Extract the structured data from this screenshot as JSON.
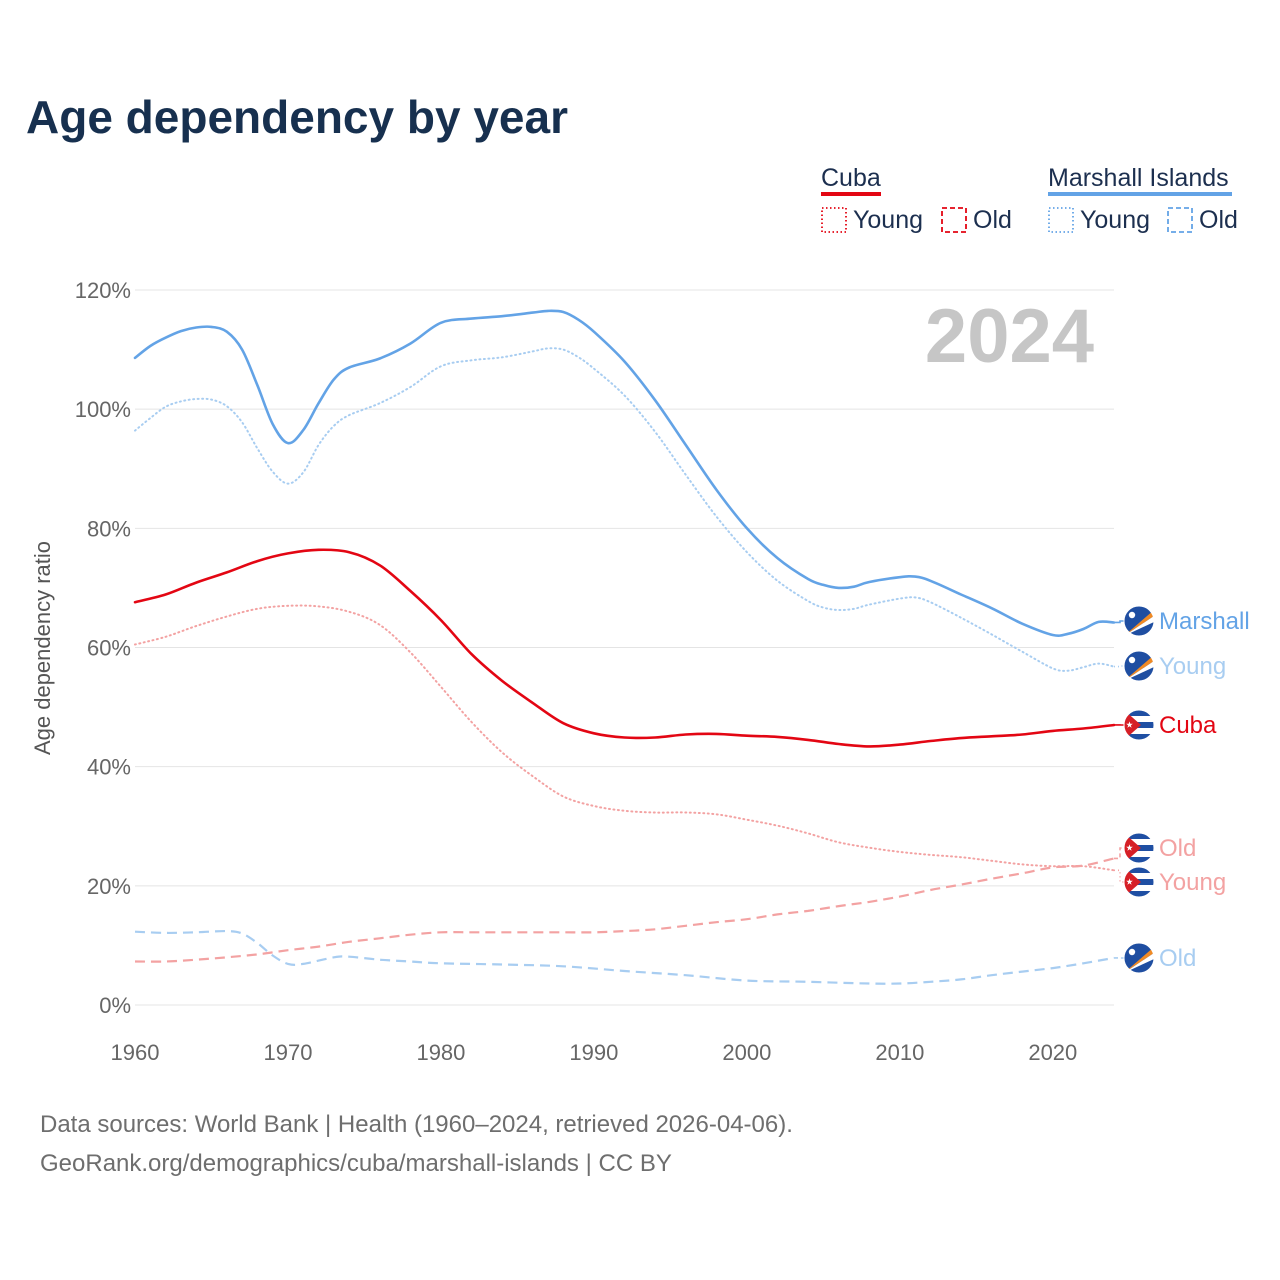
{
  "title": "Age dependency by year",
  "year_stamp": "2024",
  "legend": {
    "groups": [
      {
        "name": "Cuba",
        "color": "#e30613",
        "items": [
          "Young",
          "Old"
        ]
      },
      {
        "name": "Marshall Islands",
        "color": "#63a3e6",
        "items": [
          "Young",
          "Old"
        ]
      }
    ]
  },
  "chart_data": {
    "type": "line",
    "title": "Age dependency by year",
    "xlabel": "",
    "ylabel": "Age dependency ratio",
    "xlim": [
      1960,
      2024
    ],
    "ylim": [
      0,
      120
    ],
    "x_ticks": [
      1960,
      1970,
      1980,
      1990,
      2000,
      2010,
      2020
    ],
    "y_ticks": [
      0,
      20,
      40,
      60,
      80,
      100,
      120
    ],
    "y_tick_labels": [
      "0%",
      "20%",
      "40%",
      "60%",
      "80%",
      "100%",
      "120%"
    ],
    "grid": true,
    "series": [
      {
        "id": "cuba-total",
        "name": "Cuba",
        "country": "Cuba",
        "kind": "Total",
        "color": "#e30613",
        "dash": "solid",
        "label": "Cuba",
        "points": [
          [
            1960,
            67.6
          ],
          [
            1962,
            68.9
          ],
          [
            1964,
            70.9
          ],
          [
            1966,
            72.6
          ],
          [
            1968,
            74.5
          ],
          [
            1970,
            75.8
          ],
          [
            1972,
            76.4
          ],
          [
            1974,
            76.0
          ],
          [
            1976,
            73.8
          ],
          [
            1978,
            69.5
          ],
          [
            1980,
            64.6
          ],
          [
            1982,
            58.9
          ],
          [
            1984,
            54.4
          ],
          [
            1986,
            50.7
          ],
          [
            1988,
            47.3
          ],
          [
            1990,
            45.6
          ],
          [
            1992,
            44.9
          ],
          [
            1994,
            44.9
          ],
          [
            1996,
            45.4
          ],
          [
            1998,
            45.5
          ],
          [
            2000,
            45.2
          ],
          [
            2002,
            45.0
          ],
          [
            2004,
            44.5
          ],
          [
            2006,
            43.8
          ],
          [
            2008,
            43.4
          ],
          [
            2010,
            43.7
          ],
          [
            2012,
            44.3
          ],
          [
            2014,
            44.8
          ],
          [
            2016,
            45.1
          ],
          [
            2018,
            45.4
          ],
          [
            2020,
            46.0
          ],
          [
            2022,
            46.4
          ],
          [
            2024,
            47.0
          ]
        ]
      },
      {
        "id": "cuba-young",
        "name": "Cuba Young",
        "country": "Cuba",
        "kind": "Young",
        "color": "#f3a2a2",
        "dash": "dotted",
        "label": "Young",
        "points": [
          [
            1960,
            60.5
          ],
          [
            1962,
            61.8
          ],
          [
            1964,
            63.6
          ],
          [
            1966,
            65.2
          ],
          [
            1968,
            66.5
          ],
          [
            1970,
            67.0
          ],
          [
            1972,
            66.9
          ],
          [
            1974,
            66.0
          ],
          [
            1976,
            63.8
          ],
          [
            1978,
            59.2
          ],
          [
            1980,
            53.4
          ],
          [
            1982,
            47.5
          ],
          [
            1984,
            42.4
          ],
          [
            1986,
            38.4
          ],
          [
            1988,
            35.0
          ],
          [
            1990,
            33.4
          ],
          [
            1992,
            32.6
          ],
          [
            1994,
            32.3
          ],
          [
            1996,
            32.3
          ],
          [
            1998,
            32.0
          ],
          [
            2000,
            31.1
          ],
          [
            2002,
            30.1
          ],
          [
            2004,
            28.8
          ],
          [
            2006,
            27.3
          ],
          [
            2008,
            26.4
          ],
          [
            2010,
            25.7
          ],
          [
            2012,
            25.2
          ],
          [
            2014,
            24.8
          ],
          [
            2016,
            24.2
          ],
          [
            2018,
            23.6
          ],
          [
            2020,
            23.3
          ],
          [
            2022,
            23.3
          ],
          [
            2024,
            22.6
          ]
        ]
      },
      {
        "id": "cuba-old",
        "name": "Cuba Old",
        "country": "Cuba",
        "kind": "Old",
        "color": "#f3a2a2",
        "dash": "dashed",
        "label": "Old",
        "points": [
          [
            1960,
            7.3
          ],
          [
            1962,
            7.3
          ],
          [
            1964,
            7.6
          ],
          [
            1966,
            8.0
          ],
          [
            1968,
            8.5
          ],
          [
            1970,
            9.2
          ],
          [
            1972,
            9.8
          ],
          [
            1974,
            10.6
          ],
          [
            1976,
            11.2
          ],
          [
            1978,
            11.8
          ],
          [
            1980,
            12.2
          ],
          [
            1982,
            12.2
          ],
          [
            1984,
            12.2
          ],
          [
            1986,
            12.2
          ],
          [
            1988,
            12.2
          ],
          [
            1990,
            12.2
          ],
          [
            1992,
            12.4
          ],
          [
            1994,
            12.7
          ],
          [
            1996,
            13.3
          ],
          [
            1998,
            13.9
          ],
          [
            2000,
            14.4
          ],
          [
            2002,
            15.2
          ],
          [
            2004,
            15.8
          ],
          [
            2006,
            16.6
          ],
          [
            2008,
            17.3
          ],
          [
            2010,
            18.2
          ],
          [
            2012,
            19.3
          ],
          [
            2014,
            20.2
          ],
          [
            2016,
            21.2
          ],
          [
            2018,
            22.1
          ],
          [
            2020,
            23.1
          ],
          [
            2022,
            23.4
          ],
          [
            2024,
            24.6
          ]
        ]
      },
      {
        "id": "mh-total",
        "name": "Marshall Islands",
        "country": "Marshall Islands",
        "kind": "Total",
        "color": "#63a3e6",
        "dash": "solid",
        "label": "Marshall",
        "points": [
          [
            1960,
            108.6
          ],
          [
            1961,
            110.6
          ],
          [
            1962,
            112.0
          ],
          [
            1963,
            113.1
          ],
          [
            1964,
            113.7
          ],
          [
            1965,
            113.8
          ],
          [
            1966,
            113.0
          ],
          [
            1967,
            110.0
          ],
          [
            1968,
            104.0
          ],
          [
            1969,
            97.5
          ],
          [
            1970,
            94.3
          ],
          [
            1971,
            96.5
          ],
          [
            1972,
            101.0
          ],
          [
            1973,
            105.0
          ],
          [
            1974,
            107.0
          ],
          [
            1976,
            108.5
          ],
          [
            1978,
            111.0
          ],
          [
            1980,
            114.5
          ],
          [
            1982,
            115.2
          ],
          [
            1984,
            115.6
          ],
          [
            1986,
            116.2
          ],
          [
            1987,
            116.5
          ],
          [
            1988,
            116.3
          ],
          [
            1989,
            115.0
          ],
          [
            1990,
            113.0
          ],
          [
            1992,
            108.0
          ],
          [
            1994,
            101.5
          ],
          [
            1996,
            94.0
          ],
          [
            1998,
            86.5
          ],
          [
            2000,
            80.0
          ],
          [
            2002,
            75.0
          ],
          [
            2004,
            71.5
          ],
          [
            2005,
            70.5
          ],
          [
            2006,
            70.0
          ],
          [
            2007,
            70.2
          ],
          [
            2008,
            71.0
          ],
          [
            2010,
            71.8
          ],
          [
            2011,
            71.9
          ],
          [
            2012,
            71.2
          ],
          [
            2014,
            68.9
          ],
          [
            2016,
            66.6
          ],
          [
            2018,
            64.0
          ],
          [
            2020,
            62.1
          ],
          [
            2021,
            62.3
          ],
          [
            2022,
            63.1
          ],
          [
            2023,
            64.3
          ],
          [
            2024,
            64.2
          ]
        ]
      },
      {
        "id": "mh-young",
        "name": "Marshall Islands Young",
        "country": "Marshall Islands",
        "kind": "Young",
        "color": "#a8cdf1",
        "dash": "dotted",
        "label": "Young",
        "points": [
          [
            1960,
            96.4
          ],
          [
            1961,
            98.5
          ],
          [
            1962,
            100.4
          ],
          [
            1963,
            101.3
          ],
          [
            1964,
            101.7
          ],
          [
            1965,
            101.6
          ],
          [
            1966,
            100.5
          ],
          [
            1967,
            97.8
          ],
          [
            1968,
            93.4
          ],
          [
            1969,
            89.5
          ],
          [
            1970,
            87.5
          ],
          [
            1971,
            89.4
          ],
          [
            1972,
            94.0
          ],
          [
            1973,
            97.2
          ],
          [
            1974,
            99.0
          ],
          [
            1976,
            101.0
          ],
          [
            1978,
            103.7
          ],
          [
            1980,
            107.2
          ],
          [
            1982,
            108.2
          ],
          [
            1984,
            108.7
          ],
          [
            1986,
            109.7
          ],
          [
            1987,
            110.2
          ],
          [
            1988,
            110.0
          ],
          [
            1989,
            108.7
          ],
          [
            1990,
            106.8
          ],
          [
            1992,
            102.3
          ],
          [
            1994,
            96.2
          ],
          [
            1996,
            89.0
          ],
          [
            1998,
            82.0
          ],
          [
            2000,
            76.0
          ],
          [
            2002,
            71.2
          ],
          [
            2004,
            67.8
          ],
          [
            2005,
            66.7
          ],
          [
            2006,
            66.3
          ],
          [
            2007,
            66.5
          ],
          [
            2008,
            67.2
          ],
          [
            2010,
            68.2
          ],
          [
            2011,
            68.4
          ],
          [
            2012,
            67.6
          ],
          [
            2014,
            65.0
          ],
          [
            2016,
            62.2
          ],
          [
            2018,
            59.3
          ],
          [
            2020,
            56.5
          ],
          [
            2021,
            56.1
          ],
          [
            2022,
            56.7
          ],
          [
            2023,
            57.3
          ],
          [
            2024,
            56.8
          ]
        ]
      },
      {
        "id": "mh-old",
        "name": "Marshall Islands Old",
        "country": "Marshall Islands",
        "kind": "Old",
        "color": "#a8cdf1",
        "dash": "dashed",
        "label": "Old",
        "points": [
          [
            1960,
            12.3
          ],
          [
            1962,
            12.1
          ],
          [
            1964,
            12.2
          ],
          [
            1966,
            12.4
          ],
          [
            1967,
            12.0
          ],
          [
            1968,
            10.4
          ],
          [
            1969,
            8.3
          ],
          [
            1970,
            6.9
          ],
          [
            1971,
            6.9
          ],
          [
            1973,
            8.0
          ],
          [
            1974,
            8.1
          ],
          [
            1976,
            7.6
          ],
          [
            1978,
            7.3
          ],
          [
            1980,
            7.0
          ],
          [
            1984,
            6.8
          ],
          [
            1988,
            6.5
          ],
          [
            1992,
            5.7
          ],
          [
            1996,
            5.0
          ],
          [
            2000,
            4.1
          ],
          [
            2004,
            3.9
          ],
          [
            2008,
            3.6
          ],
          [
            2010,
            3.6
          ],
          [
            2012,
            3.9
          ],
          [
            2014,
            4.3
          ],
          [
            2016,
            5.0
          ],
          [
            2018,
            5.6
          ],
          [
            2020,
            6.2
          ],
          [
            2022,
            7.0
          ],
          [
            2024,
            7.9
          ]
        ]
      }
    ],
    "end_labels": [
      {
        "series": "mh-total",
        "text": "Marshall",
        "color": "#63a3e6",
        "flag": "marshall"
      },
      {
        "series": "mh-young",
        "text": "Young",
        "color": "#a8cdf1",
        "flag": "marshall"
      },
      {
        "series": "cuba-total",
        "text": "Cuba",
        "color": "#e30613",
        "flag": "cuba"
      },
      {
        "series": "cuba-old",
        "text": "Old",
        "color": "#f3a2a2",
        "flag": "cuba"
      },
      {
        "series": "cuba-young",
        "text": "Young",
        "color": "#f3a2a2",
        "flag": "cuba"
      },
      {
        "series": "mh-old",
        "text": "Old",
        "color": "#a8cdf1",
        "flag": "marshall"
      }
    ]
  },
  "footer": {
    "line1": "Data sources: World Bank | Health (1960–2024, retrieved 2026-04-06).",
    "line2": "GeoRank.org/demographics/cuba/marshall-islands | CC BY"
  }
}
